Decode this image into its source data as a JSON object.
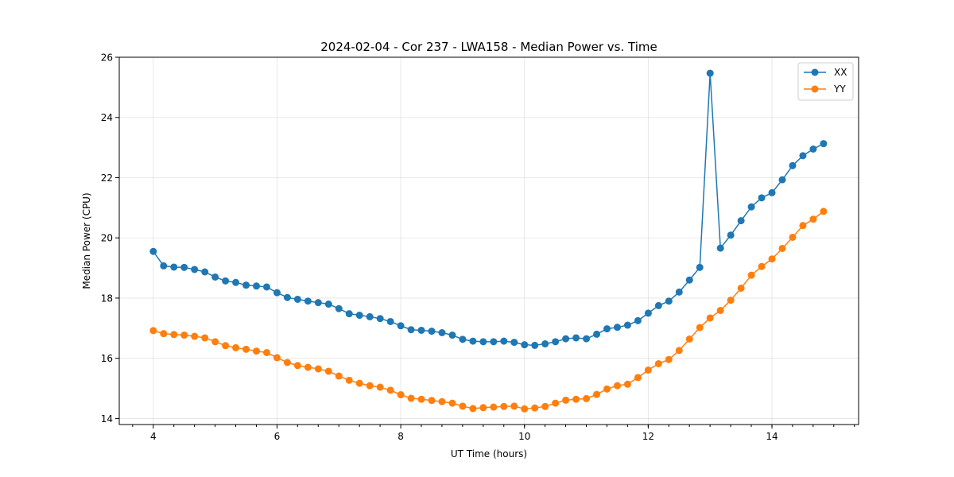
{
  "chart_data": {
    "type": "line",
    "title": "2024-02-04 - Cor 237 - LWA158 - Median Power vs. Time",
    "xlabel": "UT Time (hours)",
    "ylabel": "Median Power (CPU)",
    "xlim": [
      3.45,
      15.4
    ],
    "ylim": [
      13.8,
      26.0
    ],
    "xticks": [
      4,
      6,
      8,
      10,
      12,
      14
    ],
    "yticks": [
      14,
      16,
      18,
      20,
      22,
      24,
      26
    ],
    "x_minor_step": 0.3333,
    "grid": true,
    "legend_position": "top-right",
    "x": [
      4.0,
      4.1667,
      4.3333,
      4.5,
      4.6667,
      4.8333,
      5.0,
      5.1667,
      5.3333,
      5.5,
      5.6667,
      5.8333,
      6.0,
      6.1667,
      6.3333,
      6.5,
      6.6667,
      6.8333,
      7.0,
      7.1667,
      7.3333,
      7.5,
      7.6667,
      7.8333,
      8.0,
      8.1667,
      8.3333,
      8.5,
      8.6667,
      8.8333,
      9.0,
      9.1667,
      9.3333,
      9.5,
      9.6667,
      9.8333,
      10.0,
      10.1667,
      10.3333,
      10.5,
      10.6667,
      10.8333,
      11.0,
      11.1667,
      11.3333,
      11.5,
      11.6667,
      11.8333,
      12.0,
      12.1667,
      12.3333,
      12.5,
      12.6667,
      12.8333,
      13.0,
      13.1667,
      13.3333,
      13.5,
      13.6667,
      13.8333,
      14.0,
      14.1667,
      14.3333,
      14.5,
      14.6667,
      14.8333
    ],
    "series": [
      {
        "name": "XX",
        "color": "#1f77b4",
        "values": [
          19.55,
          19.07,
          19.03,
          19.02,
          18.95,
          18.87,
          18.7,
          18.57,
          18.52,
          18.43,
          18.4,
          18.37,
          18.18,
          18.02,
          17.96,
          17.9,
          17.85,
          17.8,
          17.65,
          17.48,
          17.43,
          17.38,
          17.32,
          17.22,
          17.08,
          16.95,
          16.93,
          16.9,
          16.85,
          16.77,
          16.63,
          16.57,
          16.55,
          16.55,
          16.57,
          16.53,
          16.45,
          16.43,
          16.48,
          16.55,
          16.65,
          16.68,
          16.65,
          16.8,
          16.98,
          17.03,
          17.1,
          17.25,
          17.5,
          17.75,
          17.9,
          18.2,
          18.6,
          19.02,
          25.47,
          19.66,
          20.09,
          20.57,
          21.03,
          21.33,
          21.5,
          21.93,
          22.4,
          22.73,
          22.95,
          23.13
        ]
      },
      {
        "name": "YY",
        "color": "#ff7f0e",
        "values": [
          16.92,
          16.82,
          16.79,
          16.77,
          16.73,
          16.68,
          16.55,
          16.42,
          16.35,
          16.3,
          16.24,
          16.19,
          16.02,
          15.86,
          15.76,
          15.7,
          15.65,
          15.57,
          15.41,
          15.27,
          15.17,
          15.09,
          15.04,
          14.94,
          14.79,
          14.67,
          14.64,
          14.6,
          14.56,
          14.51,
          14.41,
          14.33,
          14.36,
          14.38,
          14.4,
          14.41,
          14.32,
          14.35,
          14.4,
          14.51,
          14.61,
          14.64,
          14.66,
          14.8,
          14.98,
          15.09,
          15.14,
          15.36,
          15.61,
          15.82,
          15.96,
          16.26,
          16.64,
          17.02,
          17.34,
          17.59,
          17.93,
          18.33,
          18.76,
          19.05,
          19.3,
          19.65,
          20.02,
          20.41,
          20.62,
          20.88
        ]
      }
    ]
  }
}
